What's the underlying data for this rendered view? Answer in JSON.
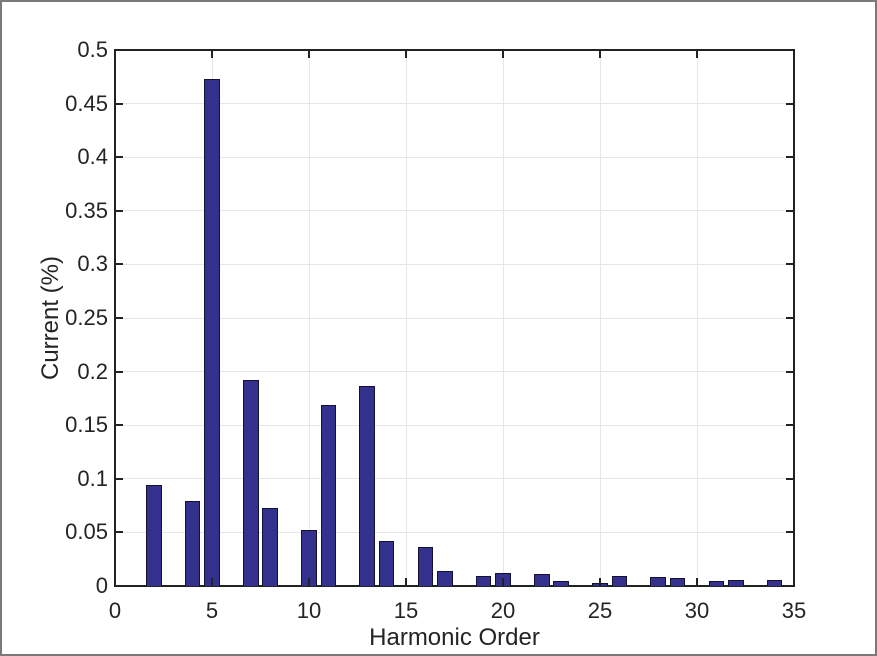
{
  "figure": {
    "background": "#ffffff",
    "border_color": "#7a7a7a"
  },
  "chart_data": {
    "type": "bar",
    "title": "",
    "xlabel": "Harmonic Order",
    "ylabel": "Current (%)",
    "xlim": [
      0,
      35
    ],
    "ylim": [
      0,
      0.5
    ],
    "xticks": [
      0,
      5,
      10,
      15,
      20,
      25,
      30,
      35
    ],
    "xtick_labels": [
      "0",
      "5",
      "10",
      "15",
      "20",
      "25",
      "30",
      "35"
    ],
    "yticks": [
      0,
      0.05,
      0.1,
      0.15,
      0.2,
      0.25,
      0.3,
      0.35,
      0.4,
      0.45,
      0.5
    ],
    "ytick_labels": [
      "0",
      "0.05",
      "0.1",
      "0.15",
      "0.2",
      "0.25",
      "0.3",
      "0.35",
      "0.4",
      "0.45",
      "0.5"
    ],
    "grid": true,
    "legend_position": "none",
    "bar_width_units": 0.8,
    "x": [
      2,
      4,
      5,
      7,
      8,
      10,
      11,
      13,
      14,
      16,
      17,
      19,
      20,
      22,
      23,
      25,
      26,
      28,
      29,
      31,
      32,
      34
    ],
    "values": [
      0.094,
      0.079,
      0.473,
      0.192,
      0.073,
      0.052,
      0.169,
      0.187,
      0.042,
      0.036,
      0.014,
      0.009,
      0.012,
      0.011,
      0.005,
      0.003,
      0.009,
      0.008,
      0.007,
      0.005,
      0.006,
      0.006
    ],
    "colors": {
      "bar_fill": "#34308e",
      "bar_edge": "#141233",
      "grid": "#e6e6e6",
      "axis": "#222222",
      "text": "#242424"
    }
  }
}
